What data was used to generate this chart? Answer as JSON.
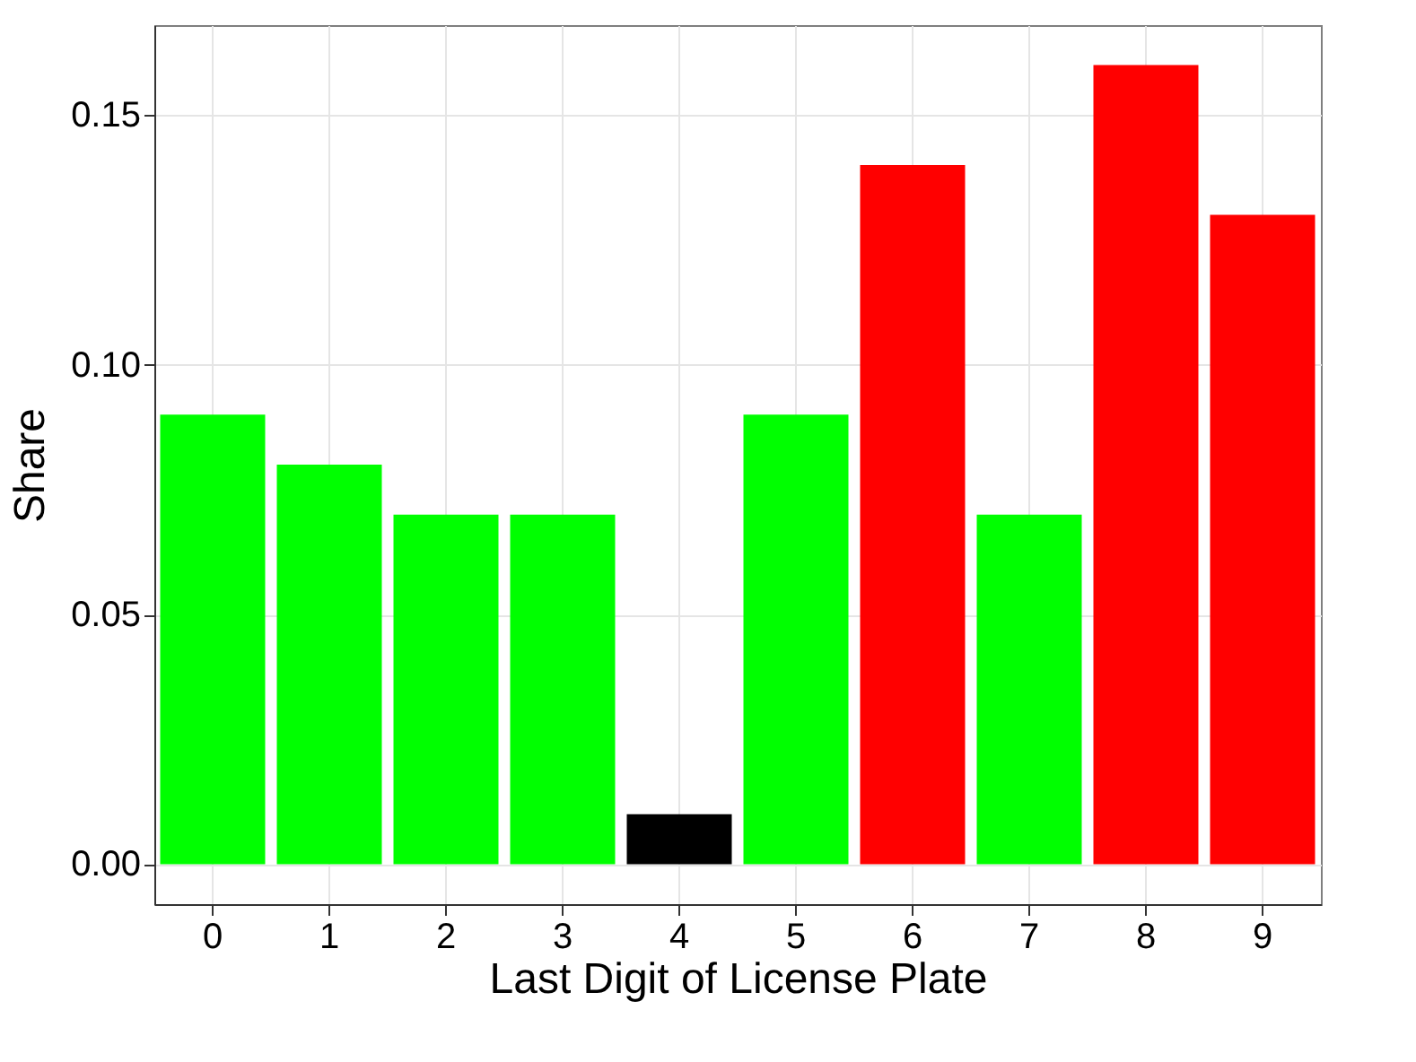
{
  "chart_data": {
    "type": "bar",
    "xlabel": "Last Digit of License Plate",
    "ylabel": "Share",
    "categories": [
      "0",
      "1",
      "2",
      "3",
      "4",
      "5",
      "6",
      "7",
      "8",
      "9"
    ],
    "values": [
      0.09,
      0.08,
      0.07,
      0.07,
      0.01,
      0.09,
      0.14,
      0.07,
      0.16,
      0.13
    ],
    "colors": [
      "#00ff00",
      "#00ff00",
      "#00ff00",
      "#00ff00",
      "#000000",
      "#00ff00",
      "#ff0000",
      "#00ff00",
      "#ff0000",
      "#ff0000"
    ],
    "ylim": [
      -0.008,
      0.168
    ],
    "yticks": [
      {
        "value": 0,
        "label": "0.00"
      },
      0.05,
      {
        "value": 0.1,
        "label": "0.10"
      },
      0.15
    ],
    "grid": true
  }
}
